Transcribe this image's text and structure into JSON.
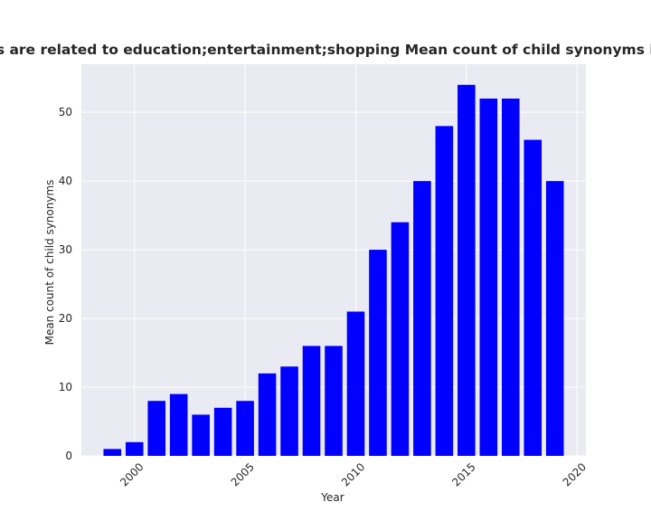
{
  "chart_data": {
    "type": "bar",
    "title": "ies are related to education;entertainment;shopping Mean count of child synonyms in privacy",
    "xlabel": "Year",
    "ylabel": "Mean count of child synonyms",
    "x": [
      1999,
      2000,
      2001,
      2002,
      2003,
      2004,
      2005,
      2006,
      2007,
      2008,
      2009,
      2010,
      2011,
      2012,
      2013,
      2014,
      2015,
      2016,
      2017,
      2018,
      2019
    ],
    "values": [
      1,
      2,
      8,
      9,
      6,
      7,
      8,
      12,
      13,
      16,
      16,
      21,
      30,
      34,
      40,
      48,
      54,
      52,
      52,
      46,
      40
    ],
    "xlim": [
      1997.6,
      2020.4
    ],
    "ylim": [
      0,
      57
    ],
    "xticks": [
      "2000",
      "2005",
      "2010",
      "2015",
      "2020"
    ],
    "yticks": [
      "0",
      "10",
      "20",
      "30",
      "40",
      "50"
    ],
    "bar_color": "#0000ff",
    "background_color": "#eaeaf2",
    "grid": true
  }
}
